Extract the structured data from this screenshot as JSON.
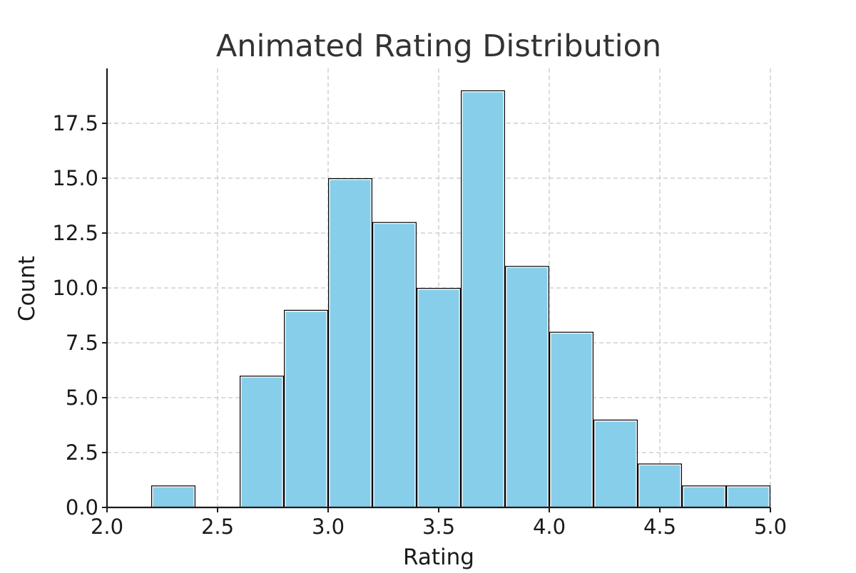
{
  "chart_data": {
    "type": "bar",
    "title": "Animated Rating Distribution",
    "xlabel": "Rating",
    "ylabel": "Count",
    "xlim": [
      2.0,
      5.0
    ],
    "ylim": [
      0,
      20
    ],
    "xticks": [
      2.0,
      2.5,
      3.0,
      3.5,
      4.0,
      4.5,
      5.0
    ],
    "xtick_labels": [
      "2.0",
      "2.5",
      "3.0",
      "3.5",
      "4.0",
      "4.5",
      "5.0"
    ],
    "yticks": [
      0,
      2.5,
      5,
      7.5,
      10,
      12.5,
      15,
      17.5
    ],
    "ytick_labels": [
      "0.0",
      "2.5",
      "5.0",
      "7.5",
      "10.0",
      "12.5",
      "15.0",
      "17.5"
    ],
    "grid": true,
    "bar_color": "#87ceeb",
    "edge_color": "#000000",
    "bins": [
      {
        "start": 2.2,
        "end": 2.4,
        "count": 1
      },
      {
        "start": 2.6,
        "end": 2.8,
        "count": 6
      },
      {
        "start": 2.8,
        "end": 3.0,
        "count": 9
      },
      {
        "start": 3.0,
        "end": 3.2,
        "count": 15
      },
      {
        "start": 3.2,
        "end": 3.4,
        "count": 13
      },
      {
        "start": 3.4,
        "end": 3.6,
        "count": 10
      },
      {
        "start": 3.6,
        "end": 3.8,
        "count": 19
      },
      {
        "start": 3.8,
        "end": 4.0,
        "count": 11
      },
      {
        "start": 4.0,
        "end": 4.2,
        "count": 8
      },
      {
        "start": 4.2,
        "end": 4.4,
        "count": 4
      },
      {
        "start": 4.4,
        "end": 4.6,
        "count": 2
      },
      {
        "start": 4.6,
        "end": 4.8,
        "count": 1
      },
      {
        "start": 4.8,
        "end": 5.0,
        "count": 1
      }
    ]
  }
}
